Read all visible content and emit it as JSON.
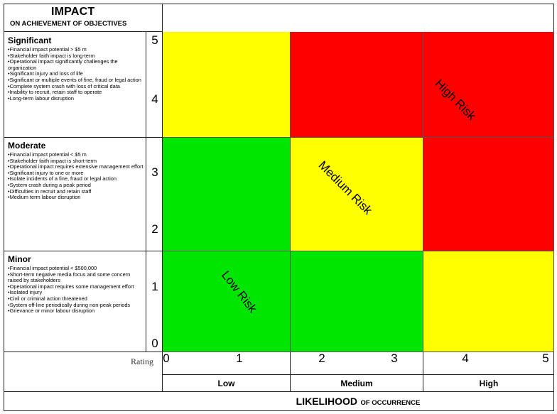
{
  "impact_header": {
    "title": "IMPACT",
    "subtitle": "ON ACHIEVEMENT OF OBJECTIVES"
  },
  "impact_categories": [
    {
      "title": "Significant",
      "items": [
        "Financial impact potential > $5 m",
        "Stakeholder faith impact is long-term",
        "Operational impact significantly challenges the organization",
        "Significant injury and loss of life",
        "Significant or multiple events of fine, fraud or legal action",
        "Complete system crash with loss of critical data",
        "Inability to recruit, retain staff to operate",
        "Long-term labour disruption"
      ]
    },
    {
      "title": "Moderate",
      "items": [
        "Financial impact potential < $5 m",
        "Stakeholder faith impact is short-term",
        "Operational impact requires extensive management effort",
        "Significant injury to one or more",
        "Isolate incidents of a fine, fraud or legal action",
        "System crash during a peak period",
        "Difficulties in recruit and retain staff",
        "Medium term labour disruption"
      ]
    },
    {
      "title": "Minor",
      "items": [
        "Financial impact potential < $500,000",
        "Short-term negative media focus and some concern raised by stakeholders",
        "Operational impact requires some management effort",
        "Isolated injury",
        "Civil or criminal action threatened",
        "System off-line periodically during non-peak periods",
        "Grievance or minor labour disruption"
      ]
    }
  ],
  "y_scale": [
    "5",
    "4",
    "3",
    "2",
    "1",
    "0"
  ],
  "x_scale": [
    "0",
    "1",
    "2",
    "3",
    "4",
    "5"
  ],
  "rating_label": "Rating",
  "likelihood_categories": [
    "Low",
    "Medium",
    "High"
  ],
  "likelihood_title": {
    "main": "LIKELIHOOD",
    "sub": "OF OCCURRENCE"
  },
  "risk_labels": {
    "low": "Low Risk",
    "medium": "Medium Risk",
    "high": "High Risk"
  },
  "matrix_colors": {
    "green": "#00e600",
    "yellow": "#ffff00",
    "red": "#ff0000"
  },
  "matrix_rows": [
    [
      "yellow",
      "red",
      "red"
    ],
    [
      "green",
      "yellow",
      "red"
    ],
    [
      "green",
      "green",
      "yellow"
    ]
  ]
}
